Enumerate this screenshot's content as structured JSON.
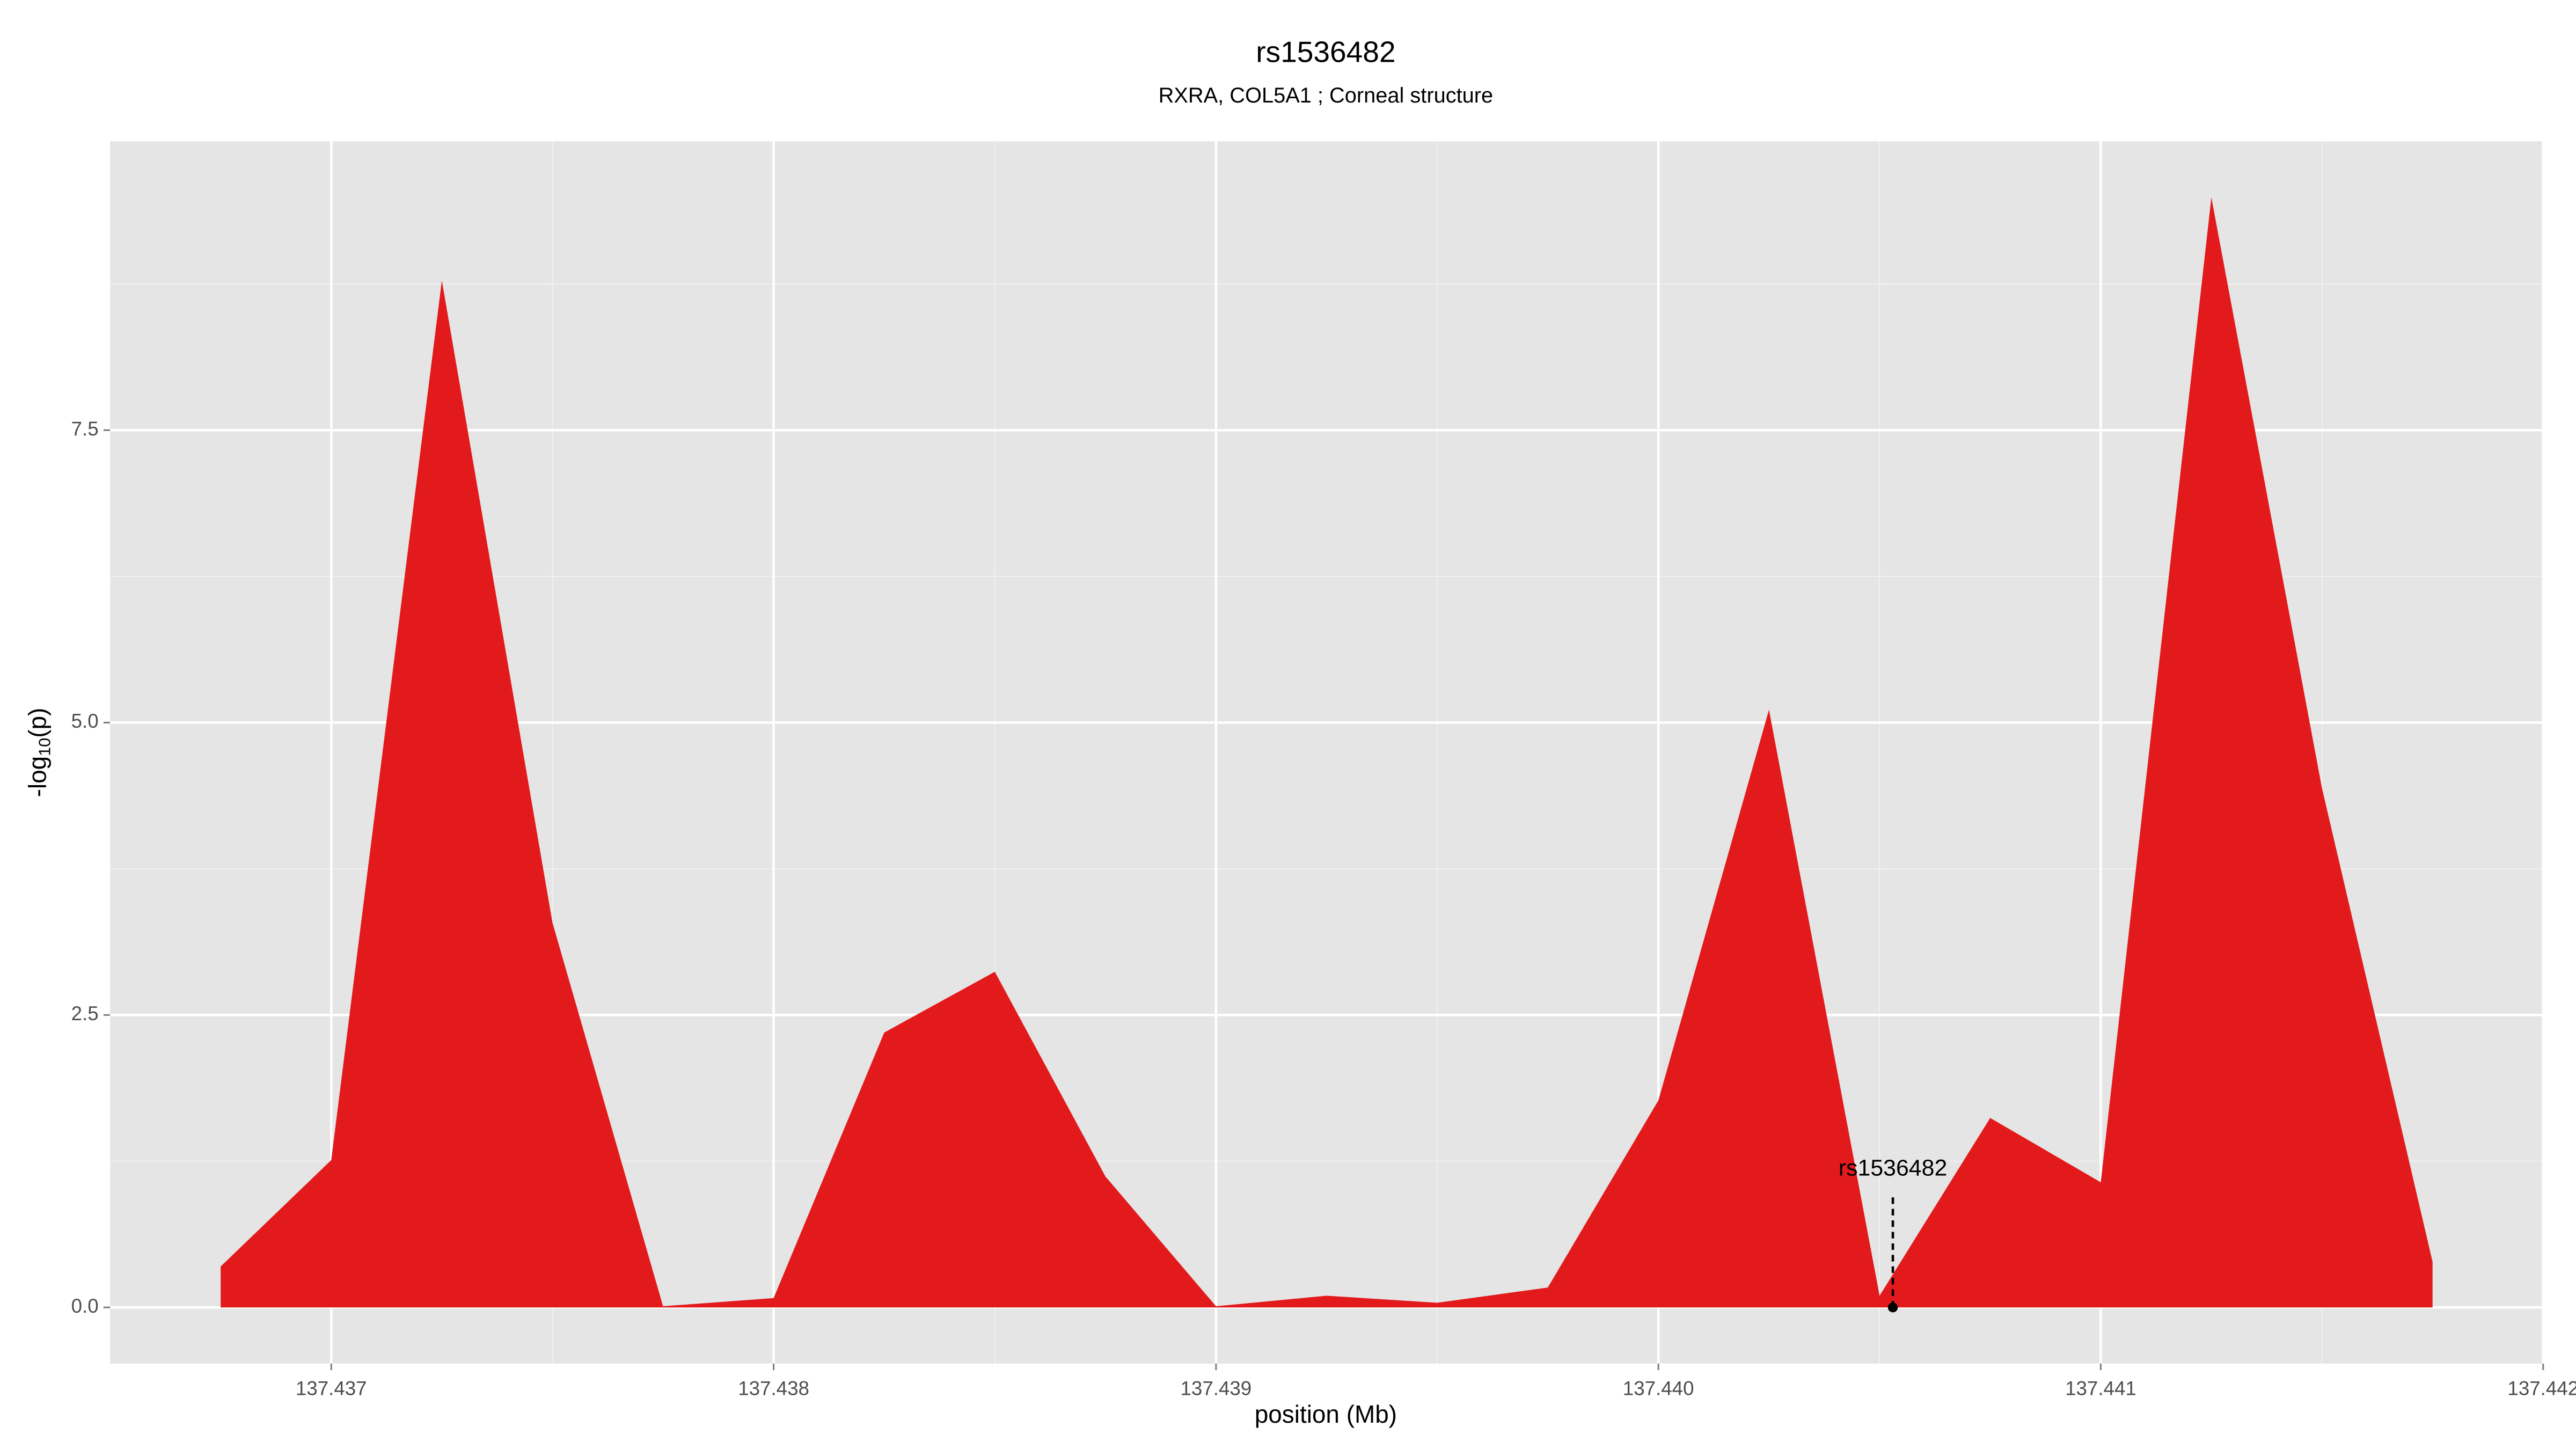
{
  "chart_data": {
    "type": "area",
    "title": "rs1536482",
    "subtitle": "RXRA, COL5A1 ; Corneal structure",
    "x_label": "position (Mb)",
    "y_label_parts": [
      "-log",
      "10",
      "(p)"
    ],
    "x": [
      137.43675,
      137.437,
      137.43725,
      137.4375,
      137.43775,
      137.438,
      137.43825,
      137.4385,
      137.43875,
      137.439,
      137.43925,
      137.4395,
      137.43975,
      137.44,
      137.44025,
      137.4405,
      137.44075,
      137.441,
      137.44125,
      137.4415,
      137.44175
    ],
    "values": [
      0.35,
      1.26,
      8.78,
      3.29,
      0.01,
      0.08,
      2.35,
      2.87,
      1.12,
      0.01,
      0.1,
      0.04,
      0.17,
      1.77,
      5.11,
      0.1,
      1.62,
      1.07,
      9.49,
      4.44,
      0.39
    ],
    "color": "#e31a1c",
    "xlim": [
      137.4365,
      137.442
    ],
    "ylim": [
      -0.48,
      9.97
    ],
    "xticks": [
      137.437,
      137.438,
      137.439,
      {
        "value": 137.44,
        "label": "137.440"
      },
      137.441,
      137.442
    ],
    "yticks": [
      {
        "value": 0,
        "label": "0.0"
      },
      2.5,
      {
        "value": 5,
        "label": "5.0"
      },
      7.5
    ],
    "x_minor_ticks": [
      137.4375,
      137.4385,
      137.4395,
      137.4405,
      137.4415
    ],
    "y_minor_ticks": [
      1.25,
      3.75,
      6.25,
      8.75
    ],
    "grid": true,
    "annotation": {
      "label": "rs1536482",
      "x": 137.44053,
      "y": 0
    }
  }
}
